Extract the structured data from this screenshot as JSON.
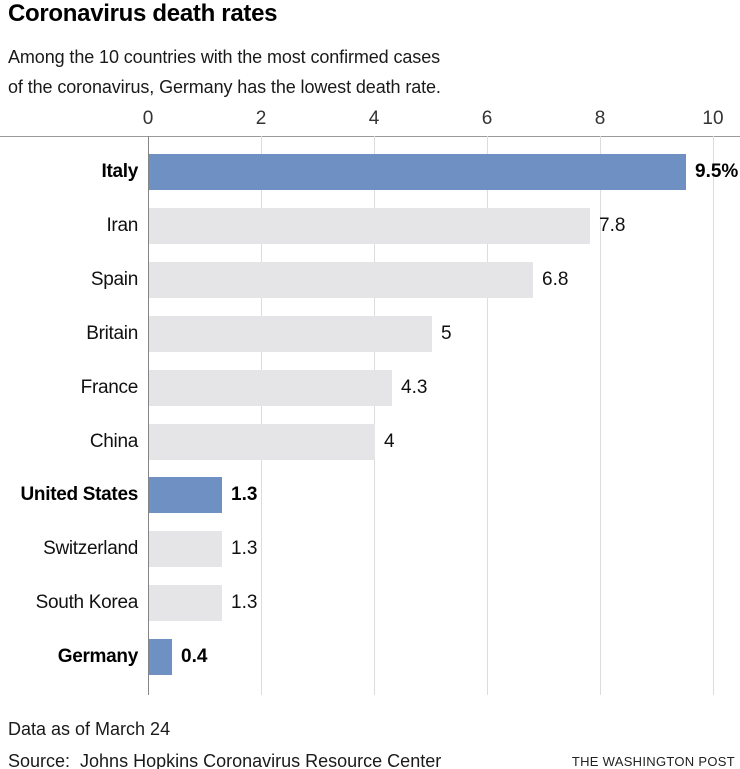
{
  "header": {
    "title": "Coronavirus death rates",
    "subtitle_line1": "Among the 10 countries with the most confirmed cases",
    "subtitle_line2": "of the coronavirus, Germany has the lowest death rate."
  },
  "chart_data": {
    "type": "bar",
    "orientation": "horizontal",
    "title": "Coronavirus death rates",
    "subtitle": "Among the 10 countries with the most confirmed cases of the coronavirus, Germany has the lowest death rate.",
    "categories": [
      "Italy",
      "Iran",
      "Spain",
      "Britain",
      "France",
      "China",
      "United States",
      "Switzerland",
      "South Korea",
      "Germany"
    ],
    "values": [
      9.5,
      7.8,
      6.8,
      5,
      4.3,
      4,
      1.3,
      1.3,
      1.3,
      0.4
    ],
    "value_labels": [
      "9.5%",
      "7.8",
      "6.8",
      "5",
      "4.3",
      "4",
      "1.3",
      "1.3",
      "1.3",
      "0.4"
    ],
    "highlighted_categories": [
      "Italy",
      "United States",
      "Germany"
    ],
    "x_ticks": [
      0,
      2,
      4,
      6,
      8,
      10
    ],
    "xlim": [
      0,
      10
    ],
    "grid": true,
    "legend_position": "none",
    "bar_color_highlight": "#6f90c2",
    "bar_color_default": "#e5e5e7"
  },
  "footer": {
    "note": "Data as of March 24",
    "source": "Source:  Johns Hopkins Coronavirus Resource Center",
    "publisher": "THE WASHINGTON POST"
  }
}
